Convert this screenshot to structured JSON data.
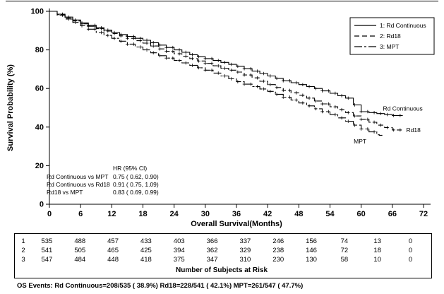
{
  "chart_data": {
    "type": "line",
    "title": "",
    "xlabel": "Overall Survival(Months)",
    "ylabel": "Survival Probability (%)",
    "xlim": [
      0,
      72
    ],
    "ylim": [
      0,
      100
    ],
    "xticks": [
      0,
      6,
      12,
      18,
      24,
      30,
      36,
      42,
      48,
      54,
      60,
      66,
      72
    ],
    "yticks": [
      0,
      20,
      40,
      60,
      80,
      100
    ],
    "grid": false,
    "legend_position": "top-right",
    "colors": {
      "line": "#000000",
      "background": "#ffffff"
    },
    "series": [
      {
        "name": "1: Rd Continuous",
        "curve_label": "Rd Continuous",
        "line_style": "solid",
        "x": [
          0,
          3,
          6,
          9,
          12,
          15,
          18,
          21,
          24,
          27,
          30,
          33,
          36,
          39,
          42,
          45,
          48,
          51,
          54,
          57,
          60,
          63,
          66,
          68
        ],
        "y": [
          100,
          97,
          94,
          91.5,
          89,
          87,
          85,
          82.5,
          80,
          77.5,
          75.5,
          73.5,
          71.5,
          69,
          66.5,
          64,
          62,
          60,
          57.5,
          55,
          48,
          47,
          46,
          46
        ]
      },
      {
        "name": "2: Rd18",
        "curve_label": "Rd18",
        "line_style": "dashed",
        "x": [
          0,
          3,
          6,
          9,
          12,
          15,
          18,
          21,
          24,
          27,
          30,
          33,
          36,
          39,
          42,
          45,
          48,
          51,
          54,
          57,
          60,
          63,
          66,
          68
        ],
        "y": [
          100,
          96.5,
          93.5,
          91,
          88.5,
          86,
          83.5,
          80.5,
          78,
          75.5,
          73,
          70.5,
          68.5,
          65.5,
          62,
          59,
          56.5,
          53.5,
          50.5,
          47.5,
          44,
          41,
          38.5,
          38.5
        ]
      },
      {
        "name": "3: MPT",
        "curve_label": "MPT",
        "line_style": "dashdot",
        "x": [
          0,
          3,
          6,
          9,
          12,
          15,
          18,
          21,
          24,
          27,
          30,
          33,
          36,
          39,
          42,
          45,
          48,
          51,
          54,
          57,
          60,
          63,
          64
        ],
        "y": [
          100,
          96,
          92.5,
          89,
          86,
          83,
          80,
          77,
          74.5,
          72,
          69.5,
          66.5,
          63.5,
          61,
          58.5,
          55.5,
          52.5,
          49.5,
          46.5,
          43,
          39,
          36,
          35.5
        ]
      }
    ],
    "hr_annotation": {
      "header": "HR (95% CI)",
      "rows": [
        {
          "comparison": "Rd Continuous vs MPT",
          "value": "0.75 ( 0.62, 0.90)"
        },
        {
          "comparison": "Rd Continuous vs Rd18",
          "value": "0.91 ( 0.75, 1.09)"
        },
        {
          "comparison": "Rd18 vs MPT",
          "value": "0.83 ( 0.69, 0.99)"
        }
      ]
    }
  },
  "risk_table": {
    "title": "Number of Subjects at Risk",
    "row_ids": [
      "1",
      "2",
      "3"
    ],
    "rows": [
      [
        535,
        488,
        457,
        433,
        403,
        366,
        337,
        246,
        156,
        74,
        13,
        0
      ],
      [
        541,
        505,
        465,
        425,
        394,
        362,
        329,
        238,
        146,
        72,
        18,
        0
      ],
      [
        547,
        484,
        448,
        418,
        375,
        347,
        310,
        230,
        130,
        58,
        10,
        0
      ]
    ]
  },
  "footer": {
    "os_events": "OS Events: Rd Continuous=208/535 ( 38.9%) Rd18=228/541 ( 42.1%) MPT=261/547 ( 47.7%)"
  }
}
